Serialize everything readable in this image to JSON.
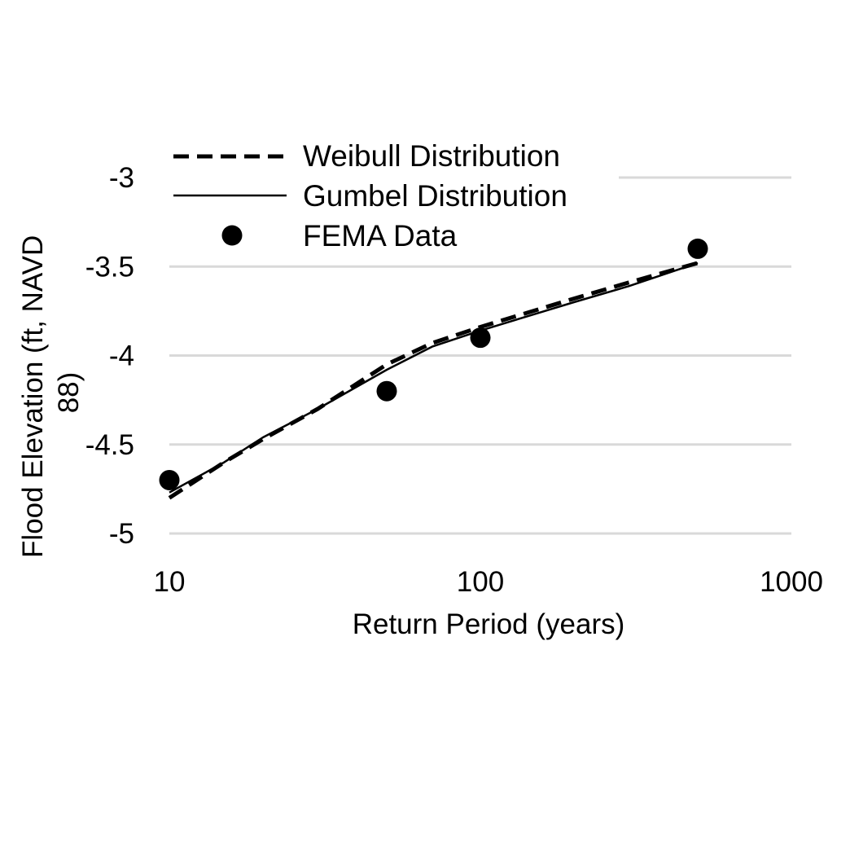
{
  "chart_data": {
    "type": "line",
    "title": "",
    "xlabel": "Return Period (years)",
    "ylabel": "Flood Elevation (ft, NAVD 88)",
    "ylabel_lines": [
      "Flood Elevation (ft, NAVD",
      "88)"
    ],
    "x_scale": "log",
    "xlim": [
      10,
      1000
    ],
    "ylim": [
      -5,
      -3
    ],
    "x_ticks": [
      10,
      100,
      1000
    ],
    "x_tick_labels": [
      "10",
      "100",
      "1000"
    ],
    "y_ticks": [
      -5,
      -4.5,
      -4,
      -3.5,
      -3
    ],
    "y_tick_labels": [
      "-5",
      "-4.5",
      "-4",
      "-3.5",
      "-3"
    ],
    "grid": "horizontal",
    "legend_position": "top-left",
    "series": [
      {
        "name": "Weibull Distribution",
        "style": "dashed",
        "color": "#000000",
        "x": [
          10,
          15,
          20,
          30,
          50,
          70,
          100,
          200,
          300,
          500
        ],
        "y": [
          -4.8,
          -4.6,
          -4.47,
          -4.3,
          -4.05,
          -3.93,
          -3.84,
          -3.68,
          -3.59,
          -3.48
        ]
      },
      {
        "name": "Gumbel Distribution",
        "style": "solid",
        "color": "#000000",
        "x": [
          10,
          15,
          20,
          30,
          50,
          70,
          100,
          200,
          300,
          500
        ],
        "y": [
          -4.77,
          -4.6,
          -4.46,
          -4.3,
          -4.08,
          -3.95,
          -3.86,
          -3.7,
          -3.61,
          -3.48
        ]
      },
      {
        "name": "FEMA Data",
        "style": "markers",
        "color": "#000000",
        "x": [
          10,
          50,
          100,
          500
        ],
        "y": [
          -4.7,
          -4.2,
          -3.9,
          -3.4
        ]
      }
    ]
  }
}
